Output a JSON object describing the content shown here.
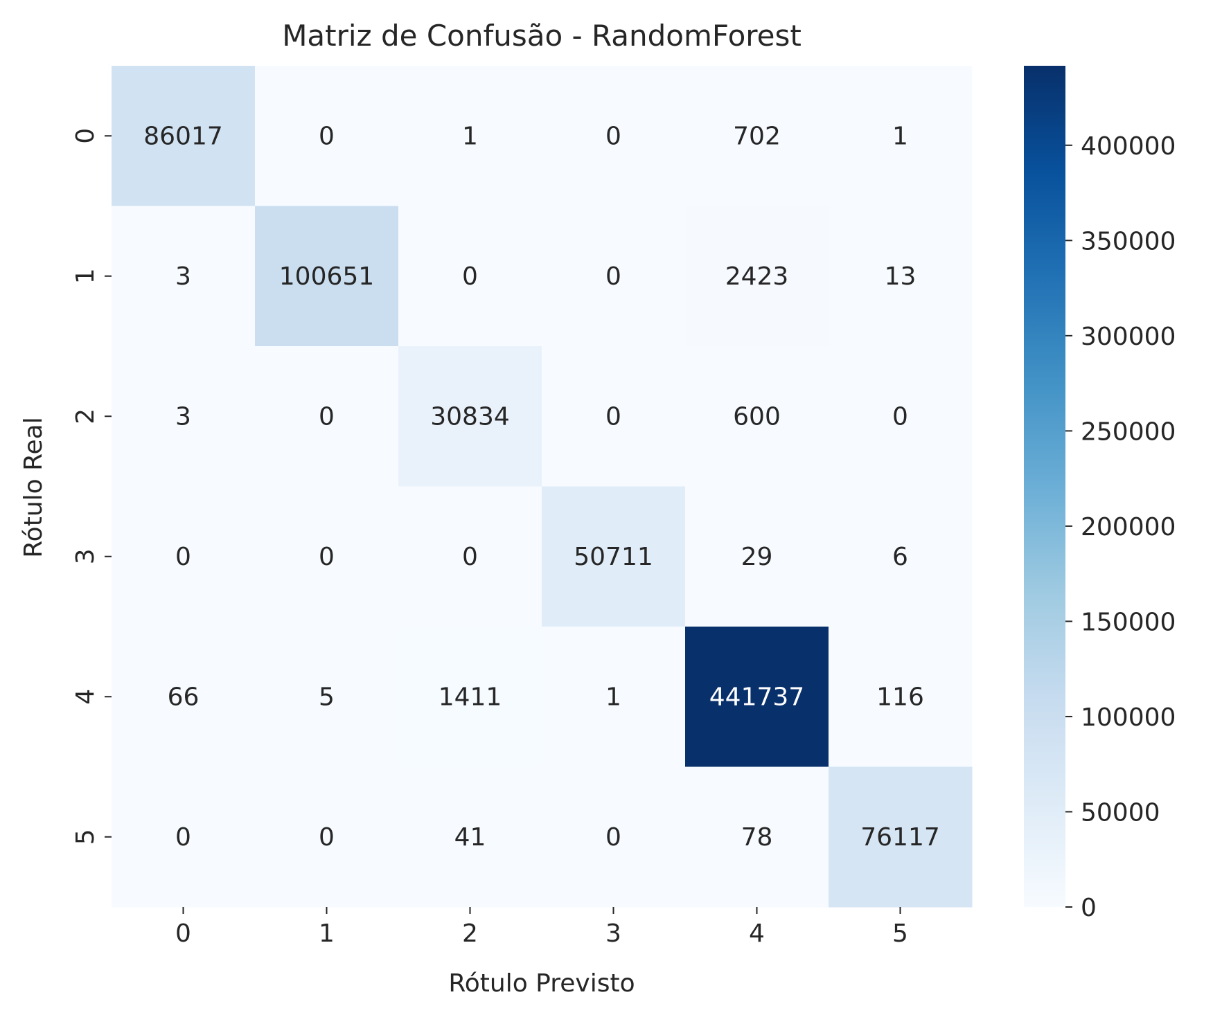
{
  "chart_data": {
    "type": "heatmap",
    "title": "Matriz de Confusão - RandomForest",
    "xlabel": "Rótulo Previsto",
    "ylabel": "Rótulo Real",
    "x_categories": [
      "0",
      "1",
      "2",
      "3",
      "4",
      "5"
    ],
    "y_categories": [
      "0",
      "1",
      "2",
      "3",
      "4",
      "5"
    ],
    "values": [
      [
        86017,
        0,
        1,
        0,
        702,
        1
      ],
      [
        3,
        100651,
        0,
        0,
        2423,
        13
      ],
      [
        3,
        0,
        30834,
        0,
        600,
        0
      ],
      [
        0,
        0,
        0,
        50711,
        29,
        6
      ],
      [
        66,
        5,
        1411,
        1,
        441737,
        116
      ],
      [
        0,
        0,
        41,
        0,
        78,
        76117
      ]
    ],
    "colormap": "Blues",
    "color_low": "#f7fbff",
    "color_high": "#08306b",
    "vmin": 0,
    "vmax": 441737,
    "colorbar_ticks": [
      0,
      50000,
      100000,
      150000,
      200000,
      250000,
      300000,
      350000,
      400000
    ],
    "grid": false
  }
}
